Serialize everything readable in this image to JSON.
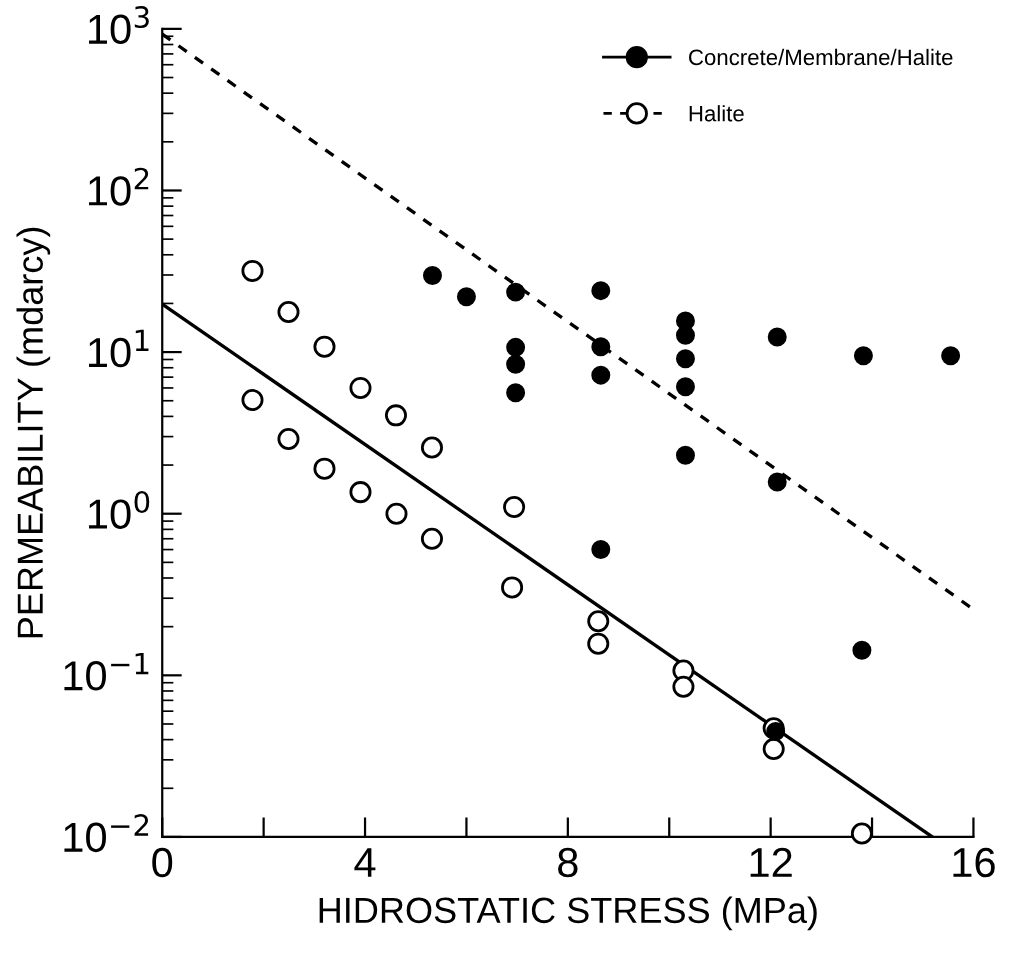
{
  "chart_data": {
    "type": "scatter",
    "xlabel": "HIDROSTATIC STRESS (MPa)",
    "ylabel": "PERMEABILITY (mdarcy)",
    "log": "y",
    "xlim": [
      0,
      16
    ],
    "ylim": [
      0.01,
      1000
    ],
    "xticks": [
      0,
      {
        "value": 2,
        "label": null
      },
      4,
      {
        "value": 6,
        "label": null
      },
      8,
      {
        "value": 10,
        "label": null
      },
      12,
      {
        "value": 14,
        "label": null
      },
      16
    ],
    "yticks": [
      {
        "value": 0.01,
        "label": "10$^{−2}$"
      },
      {
        "value": 0.1,
        "label": "10$^{−1}$"
      },
      {
        "value": 1,
        "label": "10$^{0}$"
      },
      {
        "value": 10,
        "label": "10$^{1}$"
      },
      {
        "value": 100,
        "label": "10$^{2}$"
      },
      {
        "value": 1000,
        "label": "10$^{3}$"
      }
    ],
    "grid": false,
    "legend": "top right",
    "series": [
      {
        "name": "Concrete/Membrane/Halite",
        "marker": "circle",
        "color": "#000000",
        "line_style": "solid",
        "x": [
          5.33,
          6.0,
          6.97,
          6.97,
          6.97,
          6.97,
          8.65,
          8.65,
          8.65,
          8.65,
          10.32,
          10.32,
          10.32,
          10.32,
          10.32,
          12.13,
          12.13,
          12.1,
          13.83,
          13.8,
          15.55
        ],
        "values": [
          29.8,
          22,
          23.5,
          10.7,
          8.4,
          5.6,
          24,
          10.8,
          7.2,
          0.6,
          15.6,
          12.7,
          9.1,
          6.1,
          2.3,
          12.4,
          1.57,
          0.045,
          9.5,
          0.143,
          9.5
        ]
      },
      {
        "name": "Halite",
        "marker": "circle",
        "color": "#ffffff",
        "line_style": "dashed",
        "x": [
          1.78,
          2.49,
          3.2,
          3.91,
          4.61,
          5.32,
          1.78,
          2.49,
          3.2,
          3.91,
          4.62,
          5.32,
          6.94,
          6.9,
          8.6,
          8.6,
          10.28,
          10.28,
          12.06,
          12.06,
          13.8
        ],
        "values": [
          31.8,
          17.7,
          10.8,
          6.0,
          4.06,
          2.57,
          5.05,
          2.9,
          1.9,
          1.36,
          1.0,
          0.7,
          1.1,
          0.35,
          0.216,
          0.157,
          0.107,
          0.085,
          0.047,
          0.035,
          0.0105
        ]
      },
      {
        "type": "line",
        "marker": "none",
        "color": "#000000",
        "line_style": "solid",
        "x": [
          0,
          15.19
        ],
        "values": [
          19.8,
          0.01
        ]
      },
      {
        "type": "line",
        "marker": "none",
        "color": "#000000",
        "line_style": "dashed",
        "x": [
          0,
          16
        ],
        "values": [
          927,
          0.256
        ]
      }
    ]
  }
}
